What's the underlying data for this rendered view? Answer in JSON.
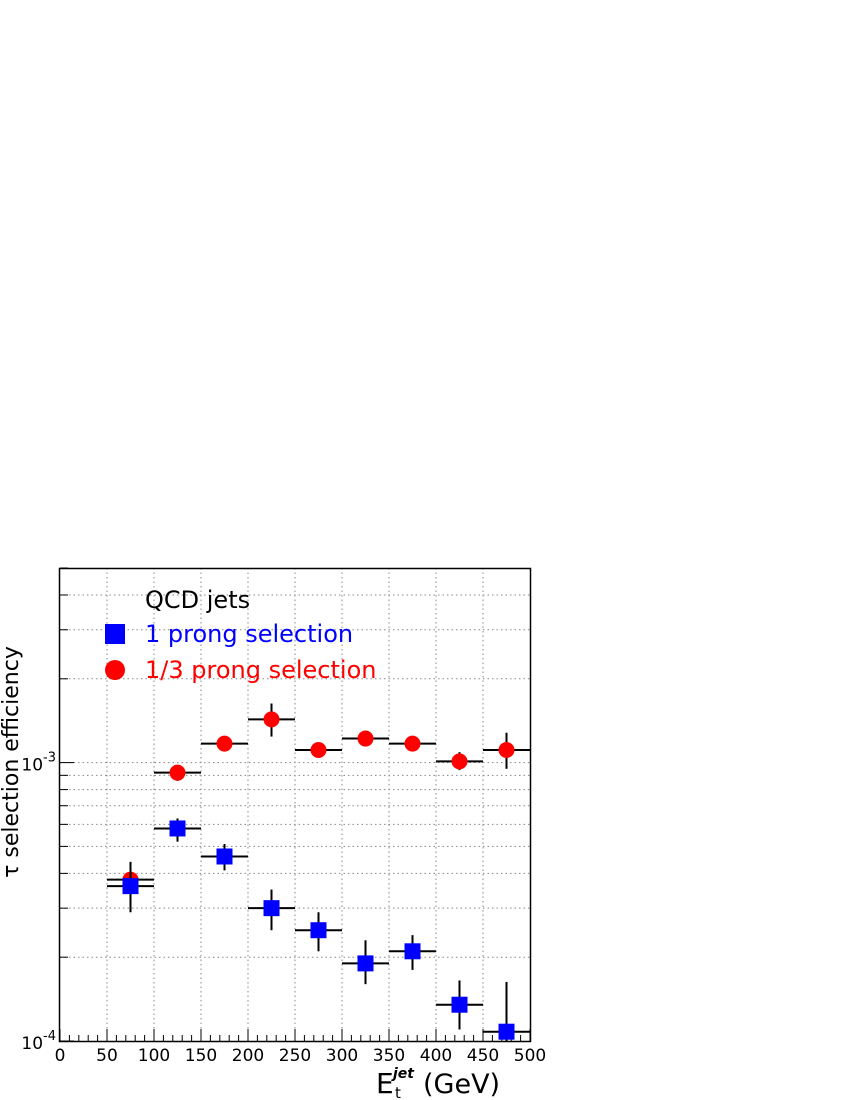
{
  "chart_data": {
    "type": "scatter",
    "title": "",
    "xlabel": "E",
    "xlabel_sub": "t",
    "xlabel_sup": "jet",
    "xlabel_unit": "(GeV)",
    "ylabel": "τ selection efficiency",
    "xlim": [
      0,
      500
    ],
    "ylim": [
      0.0001,
      0.005
    ],
    "yscale": "log",
    "grid": true,
    "legend_placement": "top-left",
    "legend_title": "QCD jets",
    "x_ticks": [
      "0",
      "50",
      "100",
      "150",
      "200",
      "250",
      "300",
      "350",
      "400",
      "450",
      "500"
    ],
    "y_tick_labels": [
      {
        "base": "10",
        "exp": "-4",
        "value": 0.0001
      },
      {
        "base": "10",
        "exp": "-3",
        "value": 0.001
      }
    ],
    "series": [
      {
        "name": "1 prong selection",
        "marker": "square",
        "color": "#0000ff",
        "points": [
          {
            "x": 75,
            "xerr": 25,
            "y": 0.00036,
            "ylo": 0.00029,
            "yhi": 0.00044
          },
          {
            "x": 125,
            "xerr": 25,
            "y": 0.00058,
            "ylo": 0.00052,
            "yhi": 0.00063
          },
          {
            "x": 175,
            "xerr": 25,
            "y": 0.00046,
            "ylo": 0.00041,
            "yhi": 0.00051
          },
          {
            "x": 225,
            "xerr": 25,
            "y": 0.0003,
            "ylo": 0.00025,
            "yhi": 0.00035
          },
          {
            "x": 275,
            "xerr": 25,
            "y": 0.00025,
            "ylo": 0.00021,
            "yhi": 0.00029
          },
          {
            "x": 325,
            "xerr": 25,
            "y": 0.00019,
            "ylo": 0.00016,
            "yhi": 0.00023
          },
          {
            "x": 375,
            "xerr": 25,
            "y": 0.00021,
            "ylo": 0.00018,
            "yhi": 0.00024
          },
          {
            "x": 425,
            "xerr": 25,
            "y": 0.000135,
            "ylo": 0.00011,
            "yhi": 0.000165
          },
          {
            "x": 475,
            "xerr": 25,
            "y": 0.000108,
            "ylo": 0.0001,
            "yhi": 0.000163
          }
        ]
      },
      {
        "name": "1/3 prong selection",
        "marker": "circle",
        "color": "#ff0000",
        "points": [
          {
            "x": 75,
            "xerr": 25,
            "y": 0.00038,
            "ylo": 0.00035,
            "yhi": 0.00041
          },
          {
            "x": 125,
            "xerr": 25,
            "y": 0.00092,
            "ylo": 0.00086,
            "yhi": 0.00098
          },
          {
            "x": 175,
            "xerr": 25,
            "y": 0.00117,
            "ylo": 0.00112,
            "yhi": 0.00123
          },
          {
            "x": 225,
            "xerr": 25,
            "y": 0.00143,
            "ylo": 0.00124,
            "yhi": 0.00163
          },
          {
            "x": 275,
            "xerr": 25,
            "y": 0.00111,
            "ylo": 0.00105,
            "yhi": 0.00117
          },
          {
            "x": 325,
            "xerr": 25,
            "y": 0.00122,
            "ylo": 0.00116,
            "yhi": 0.00128
          },
          {
            "x": 375,
            "xerr": 25,
            "y": 0.00117,
            "ylo": 0.00111,
            "yhi": 0.00123
          },
          {
            "x": 425,
            "xerr": 25,
            "y": 0.00101,
            "ylo": 0.00094,
            "yhi": 0.00109
          },
          {
            "x": 475,
            "xerr": 25,
            "y": 0.00111,
            "ylo": 0.00095,
            "yhi": 0.00128
          }
        ]
      }
    ]
  }
}
